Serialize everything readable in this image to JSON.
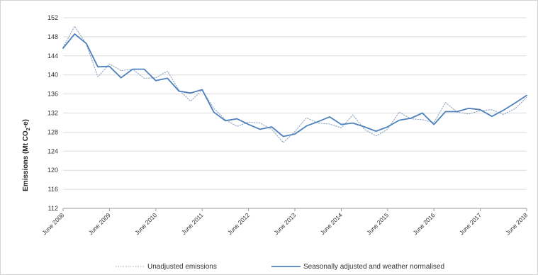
{
  "chart_data": {
    "type": "line",
    "title": "",
    "xlabel": "",
    "ylabel": "Emissions (Mt CO",
    "ylabel_subscript": "2",
    "ylabel_suffix": "-e)",
    "ylim": [
      112,
      152
    ],
    "yticks": [
      112,
      116,
      120,
      124,
      128,
      132,
      136,
      140,
      144,
      148,
      152
    ],
    "xtick_labels": [
      "June 2008",
      "June 2009",
      "June 2010",
      "June 2011",
      "June 2012",
      "June 2013",
      "June 2014",
      "June 2015",
      "June 2016",
      "June 2017",
      "June 2018"
    ],
    "grid": "horizontal",
    "legend_position": "bottom",
    "x": [
      "Jun 2008",
      "Sep 2008",
      "Dec 2008",
      "Mar 2009",
      "Jun 2009",
      "Sep 2009",
      "Dec 2009",
      "Mar 2010",
      "Jun 2010",
      "Sep 2010",
      "Dec 2010",
      "Mar 2011",
      "Jun 2011",
      "Sep 2011",
      "Dec 2011",
      "Mar 2012",
      "Jun 2012",
      "Sep 2012",
      "Dec 2012",
      "Mar 2013",
      "Jun 2013",
      "Sep 2013",
      "Dec 2013",
      "Mar 2014",
      "Jun 2014",
      "Sep 2014",
      "Dec 2014",
      "Mar 2015",
      "Jun 2015",
      "Sep 2015",
      "Dec 2015",
      "Mar 2016",
      "Jun 2016",
      "Sep 2016",
      "Dec 2016",
      "Mar 2017",
      "Jun 2017",
      "Sep 2017",
      "Dec 2017",
      "Mar 2018",
      "Jun 2018"
    ],
    "series": [
      {
        "name": "Unadjusted emissions",
        "style": "dotted",
        "color": "#8fa9c4",
        "values": [
          145.8,
          150.2,
          146.5,
          139.6,
          142.3,
          140.9,
          141.2,
          139.3,
          139.4,
          140.8,
          136.8,
          134.5,
          136.8,
          133.0,
          130.6,
          129.2,
          130.1,
          129.9,
          128.6,
          125.8,
          128.1,
          131.0,
          129.9,
          129.7,
          128.9,
          131.6,
          128.6,
          127.2,
          128.6,
          132.2,
          130.8,
          130.6,
          130.0,
          134.2,
          132.2,
          131.8,
          132.5,
          132.7,
          131.7,
          132.9,
          135.3
        ]
      },
      {
        "name": "Seasonally adjusted and weather normalised",
        "style": "solid",
        "color": "#4f81bd",
        "values": [
          145.6,
          148.6,
          146.6,
          141.7,
          141.8,
          139.4,
          141.2,
          141.2,
          138.8,
          139.3,
          136.6,
          136.2,
          136.9,
          132.2,
          130.4,
          130.8,
          129.6,
          128.6,
          129.1,
          127.1,
          127.6,
          129.3,
          130.2,
          131.2,
          129.6,
          129.9,
          129.1,
          128.2,
          129.1,
          130.5,
          130.9,
          132.0,
          129.6,
          132.3,
          132.3,
          133.0,
          132.7,
          131.3,
          132.6,
          134.1,
          135.7
        ]
      }
    ]
  }
}
